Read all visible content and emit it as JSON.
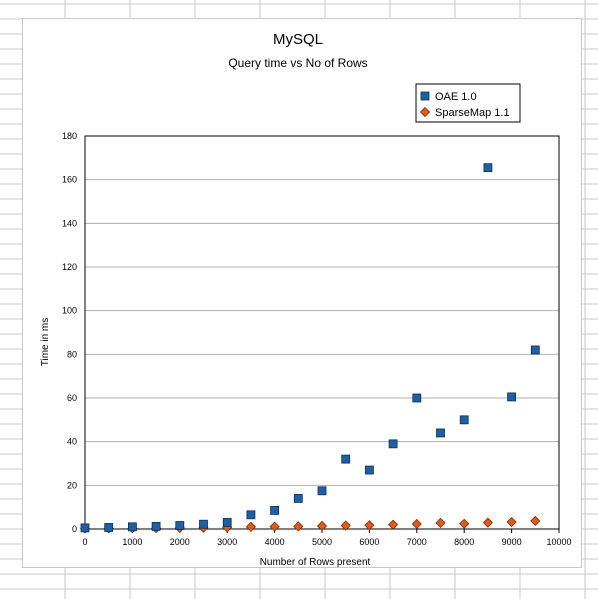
{
  "chart_data": {
    "type": "scatter",
    "title": "MySQL",
    "subtitle": "Query time vs No of Rows",
    "xlabel": "Number of Rows present",
    "ylabel": "Time in ms",
    "xlim": [
      0,
      10000
    ],
    "ylim": [
      0,
      180
    ],
    "xticks": [
      0,
      1000,
      2000,
      3000,
      4000,
      5000,
      6000,
      7000,
      8000,
      9000,
      10000
    ],
    "yticks": [
      0,
      20,
      40,
      60,
      80,
      100,
      120,
      140,
      160,
      180
    ],
    "grid": "horizontal",
    "legend_position": "top-right",
    "series": [
      {
        "name": "OAE 1.0",
        "marker": "square",
        "color": "#1f5fa3",
        "x": [
          0,
          500,
          1000,
          1500,
          2000,
          2500,
          3000,
          3500,
          4000,
          4500,
          5000,
          5500,
          6000,
          6500,
          7000,
          7500,
          8000,
          8500,
          9000,
          9500
        ],
        "y": [
          0.5,
          0.7,
          1,
          1.2,
          1.6,
          2.2,
          3,
          6.5,
          8.5,
          14,
          17.5,
          32,
          27,
          39,
          60,
          44,
          50,
          165.5,
          60.5,
          82
        ]
      },
      {
        "name": "SparseMap  1.1",
        "marker": "diamond",
        "color": "#e05a1a",
        "x": [
          0,
          500,
          1000,
          1500,
          2000,
          2500,
          3000,
          3500,
          4000,
          4500,
          5000,
          5500,
          6000,
          6500,
          7000,
          7500,
          8000,
          8500,
          9000,
          9500
        ],
        "y": [
          0.2,
          0.3,
          0.3,
          0.4,
          0.5,
          0.6,
          0.8,
          1,
          1.1,
          1.2,
          1.4,
          1.6,
          1.7,
          2,
          2.3,
          2.8,
          2.4,
          2.9,
          3.2,
          3.7
        ]
      }
    ]
  }
}
